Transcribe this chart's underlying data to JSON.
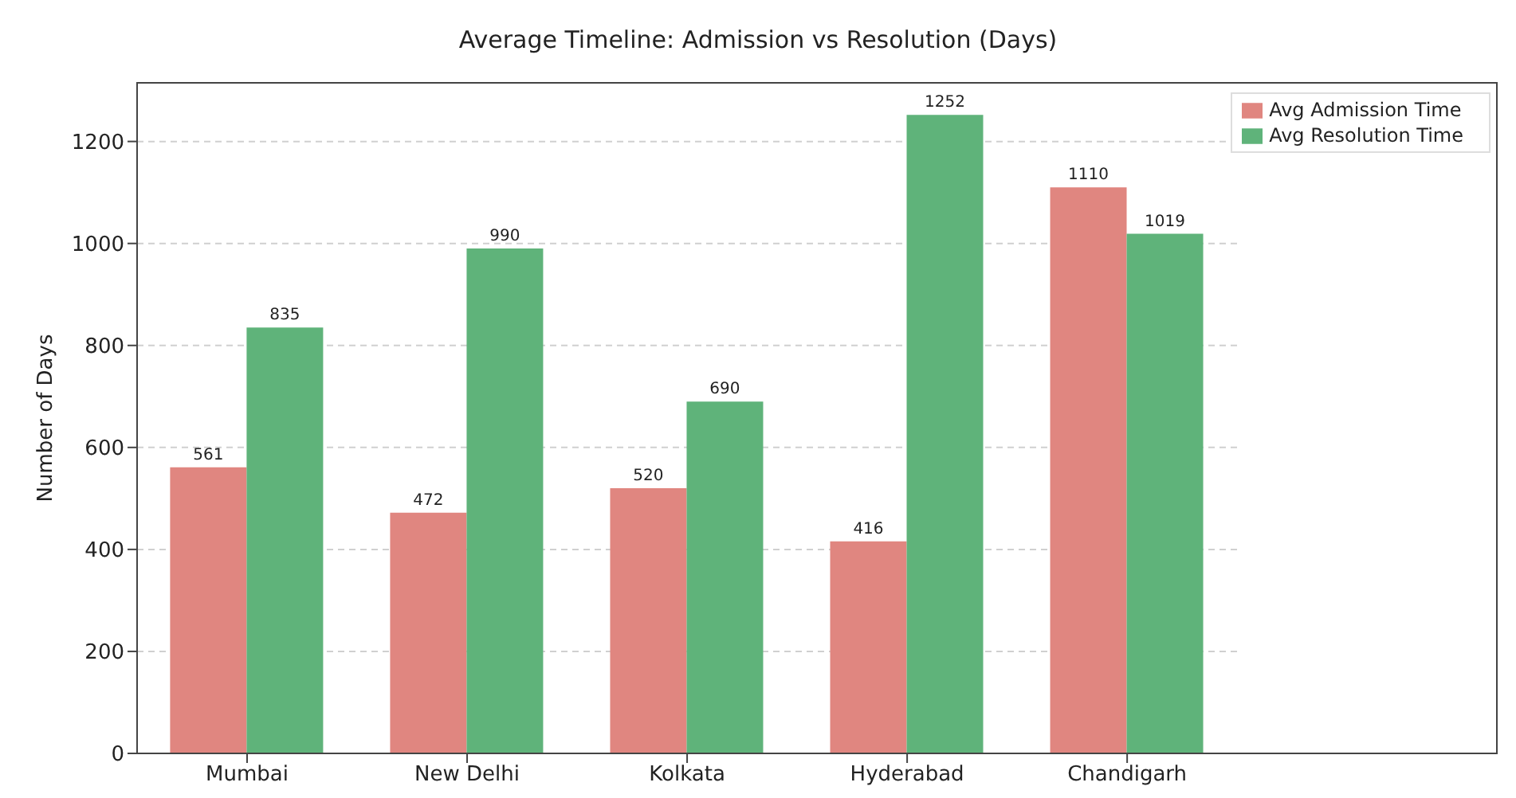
{
  "chart_data": {
    "type": "bar",
    "title": "Average Timeline: Admission vs Resolution (Days)",
    "ylabel": "Number of Days",
    "categories": [
      "Mumbai",
      "New Delhi",
      "Kolkata",
      "Hyderabad",
      "Chandigarh"
    ],
    "series": [
      {
        "name": "Avg Admission Time",
        "color": "#e08680",
        "values": [
          561,
          472,
          520,
          416,
          1110
        ]
      },
      {
        "name": "Avg Resolution Time",
        "color": "#5fb37a",
        "values": [
          835,
          990,
          690,
          1252,
          1019
        ]
      }
    ],
    "ylim": [
      0,
      1315
    ],
    "yticks": [
      0,
      200,
      400,
      600,
      800,
      1000,
      1200
    ],
    "grid": "y",
    "legend": "top right",
    "data_labels": true
  }
}
